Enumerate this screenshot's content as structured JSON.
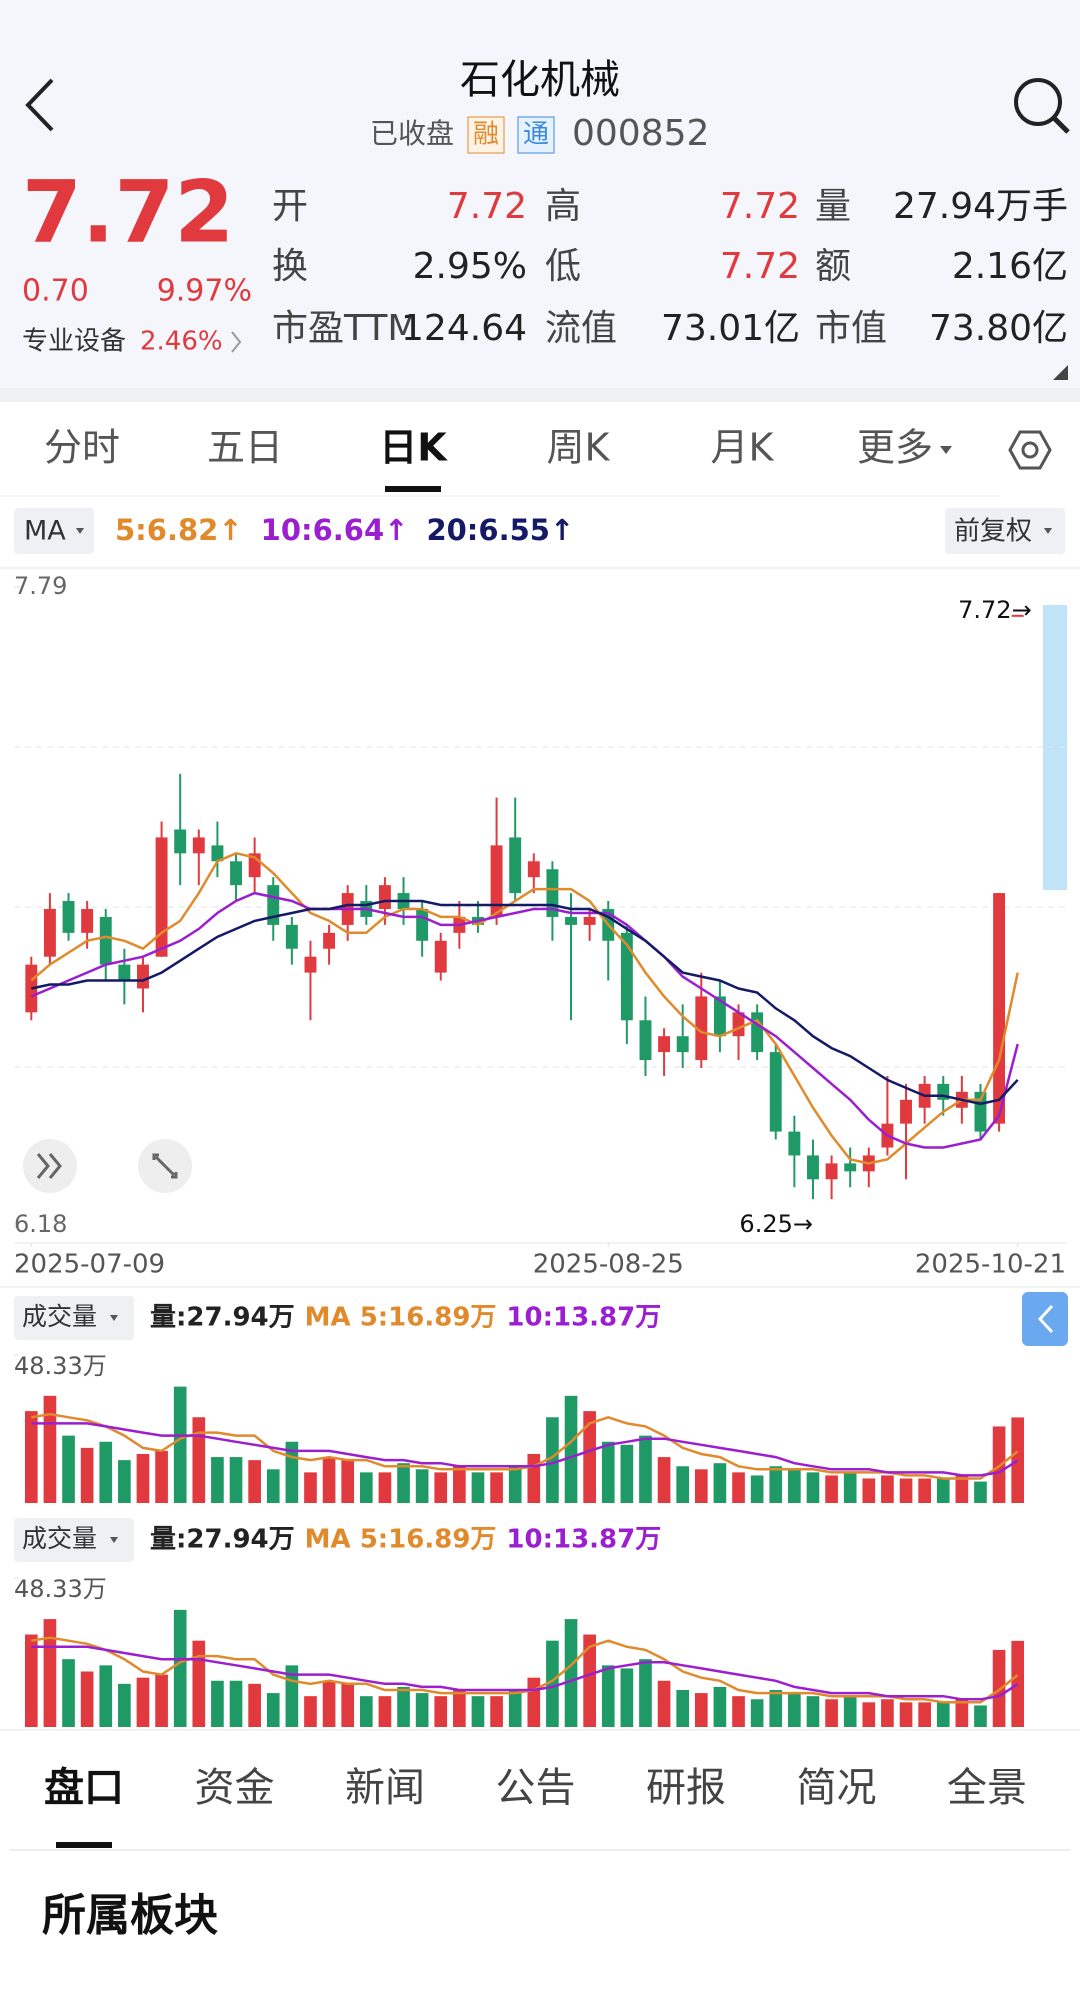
{
  "header": {
    "title": "石化机械",
    "status": "已收盘",
    "badges": [
      "融",
      "通"
    ],
    "code": "000852"
  },
  "quote": {
    "price": "7.72",
    "change": "0.70",
    "change_pct": "9.97%",
    "sector": "专业设备",
    "sector_pct": "2.46%",
    "stats": [
      [
        {
          "label": "开",
          "value": "7.72",
          "color": "#e0393e"
        },
        {
          "label": "高",
          "value": "7.72",
          "color": "#e0393e"
        },
        {
          "label": "量",
          "value": "27.94万手",
          "color": "#222"
        }
      ],
      [
        {
          "label": "换",
          "value": "2.95%",
          "color": "#222"
        },
        {
          "label": "低",
          "value": "7.72",
          "color": "#e0393e"
        },
        {
          "label": "额",
          "value": "2.16亿",
          "color": "#222"
        }
      ],
      [
        {
          "label": "市盈TTM",
          "value": "124.64",
          "color": "#222"
        },
        {
          "label": "流值",
          "value": "73.01亿",
          "color": "#222"
        },
        {
          "label": "市值",
          "value": "73.80亿",
          "color": "#222"
        }
      ]
    ]
  },
  "tabs": [
    "分时",
    "五日",
    "日K",
    "周K",
    "月K",
    "更多"
  ],
  "active_tab": 2,
  "chart_data": {
    "type": "candlestick",
    "selector": "MA",
    "adjust": "前复权",
    "ma_legend": [
      {
        "text": "5:6.82↑",
        "color": "#e08a2c"
      },
      {
        "text": "10:6.64↑",
        "color": "#9b1fd0"
      },
      {
        "text": "20:6.55↑",
        "color": "#141a66"
      }
    ],
    "up_color": "#e0393e",
    "down_color": "#1f9a66",
    "ylim": [
      6.18,
      7.79
    ],
    "yticks": [
      6.18,
      7.79
    ],
    "xticks": [
      {
        "value": 0,
        "label": "2025-07-09"
      },
      {
        "value": 31,
        "label": "2025-08-25"
      },
      {
        "value": 53,
        "label": "2025-10-21"
      }
    ],
    "annotations": [
      {
        "index": 53,
        "value": 7.72,
        "label": "7.72→"
      },
      {
        "index": 42,
        "value": 6.25,
        "label": "6.25→"
      }
    ],
    "candles": [
      [
        6.72,
        6.86,
        6.7,
        6.84
      ],
      [
        6.86,
        7.02,
        6.84,
        6.98
      ],
      [
        7.0,
        7.02,
        6.9,
        6.92
      ],
      [
        6.92,
        7.0,
        6.88,
        6.98
      ],
      [
        6.96,
        6.98,
        6.8,
        6.84
      ],
      [
        6.84,
        6.88,
        6.74,
        6.8
      ],
      [
        6.78,
        6.86,
        6.72,
        6.84
      ],
      [
        6.86,
        7.2,
        6.86,
        7.16
      ],
      [
        7.18,
        7.32,
        7.04,
        7.12
      ],
      [
        7.12,
        7.18,
        7.04,
        7.16
      ],
      [
        7.14,
        7.2,
        7.06,
        7.1
      ],
      [
        7.1,
        7.12,
        7.0,
        7.04
      ],
      [
        7.06,
        7.16,
        7.02,
        7.12
      ],
      [
        7.04,
        7.06,
        6.9,
        6.94
      ],
      [
        6.94,
        6.96,
        6.84,
        6.88
      ],
      [
        6.82,
        6.9,
        6.7,
        6.86
      ],
      [
        6.88,
        6.94,
        6.84,
        6.92
      ],
      [
        6.94,
        7.04,
        6.9,
        7.02
      ],
      [
        7.0,
        7.04,
        6.94,
        6.96
      ],
      [
        6.98,
        7.06,
        6.94,
        7.04
      ],
      [
        7.02,
        7.06,
        6.94,
        6.98
      ],
      [
        6.98,
        7.0,
        6.86,
        6.9
      ],
      [
        6.82,
        6.92,
        6.8,
        6.9
      ],
      [
        6.92,
        7.0,
        6.88,
        6.96
      ],
      [
        6.96,
        7.0,
        6.92,
        6.94
      ],
      [
        6.96,
        7.26,
        6.94,
        7.14
      ],
      [
        7.16,
        7.26,
        7.0,
        7.02
      ],
      [
        7.06,
        7.12,
        7.02,
        7.1
      ],
      [
        7.08,
        7.1,
        6.9,
        6.96
      ],
      [
        6.96,
        7.02,
        6.7,
        6.94
      ],
      [
        6.94,
        6.98,
        6.9,
        6.96
      ],
      [
        6.98,
        7.0,
        6.8,
        6.9
      ],
      [
        6.92,
        6.94,
        6.64,
        6.7
      ],
      [
        6.7,
        6.76,
        6.56,
        6.6
      ],
      [
        6.62,
        6.68,
        6.56,
        6.66
      ],
      [
        6.66,
        6.74,
        6.58,
        6.62
      ],
      [
        6.6,
        6.82,
        6.58,
        6.76
      ],
      [
        6.76,
        6.8,
        6.62,
        6.66
      ],
      [
        6.66,
        6.74,
        6.6,
        6.72
      ],
      [
        6.72,
        6.74,
        6.6,
        6.62
      ],
      [
        6.62,
        6.64,
        6.4,
        6.42
      ],
      [
        6.42,
        6.46,
        6.28,
        6.36
      ],
      [
        6.36,
        6.4,
        6.25,
        6.3
      ],
      [
        6.3,
        6.36,
        6.25,
        6.34
      ],
      [
        6.34,
        6.38,
        6.28,
        6.32
      ],
      [
        6.32,
        6.38,
        6.28,
        6.36
      ],
      [
        6.38,
        6.56,
        6.36,
        6.44
      ],
      [
        6.44,
        6.54,
        6.3,
        6.5
      ],
      [
        6.48,
        6.56,
        6.44,
        6.54
      ],
      [
        6.54,
        6.56,
        6.46,
        6.5
      ],
      [
        6.48,
        6.56,
        6.44,
        6.52
      ],
      [
        6.52,
        6.54,
        6.4,
        6.42
      ],
      [
        6.44,
        7.02,
        6.42,
        7.02
      ],
      [
        7.72,
        7.72,
        7.72,
        7.72
      ]
    ],
    "ma5": [
      6.8,
      6.84,
      6.87,
      6.9,
      6.91,
      6.9,
      6.88,
      6.92,
      6.95,
      7.02,
      7.1,
      7.12,
      7.11,
      7.07,
      7.02,
      6.97,
      6.95,
      6.92,
      6.92,
      6.96,
      6.98,
      6.98,
      6.96,
      6.96,
      6.94,
      6.97,
      7.0,
      7.03,
      7.03,
      7.03,
      7.0,
      6.94,
      6.89,
      6.82,
      6.76,
      6.71,
      6.67,
      6.66,
      6.68,
      6.7,
      6.64,
      6.56,
      6.48,
      6.41,
      6.35,
      6.34,
      6.35,
      6.39,
      6.43,
      6.47,
      6.5,
      6.5,
      6.6,
      6.82
    ],
    "ma10": [
      6.76,
      6.78,
      6.8,
      6.82,
      6.84,
      6.85,
      6.86,
      6.88,
      6.9,
      6.93,
      6.97,
      7.0,
      7.02,
      7.01,
      7.0,
      6.98,
      6.98,
      6.98,
      6.98,
      6.97,
      6.96,
      6.96,
      6.94,
      6.94,
      6.95,
      6.96,
      6.97,
      6.98,
      6.98,
      6.97,
      6.97,
      6.97,
      6.94,
      6.9,
      6.86,
      6.81,
      6.78,
      6.75,
      6.72,
      6.69,
      6.66,
      6.62,
      6.58,
      6.54,
      6.5,
      6.45,
      6.41,
      6.39,
      6.38,
      6.38,
      6.39,
      6.4,
      6.46,
      6.64
    ],
    "ma20": [
      6.78,
      6.79,
      6.79,
      6.8,
      6.8,
      6.8,
      6.8,
      6.82,
      6.85,
      6.88,
      6.91,
      6.93,
      6.95,
      6.96,
      6.97,
      6.98,
      6.98,
      6.99,
      6.99,
      7.0,
      7.0,
      7.0,
      6.99,
      6.99,
      6.99,
      6.99,
      6.99,
      6.99,
      6.99,
      6.98,
      6.98,
      6.96,
      6.93,
      6.9,
      6.86,
      6.82,
      6.81,
      6.8,
      6.78,
      6.77,
      6.73,
      6.7,
      6.66,
      6.63,
      6.61,
      6.58,
      6.55,
      6.53,
      6.51,
      6.51,
      6.5,
      6.49,
      6.5,
      6.55
    ]
  },
  "volume": {
    "type": "bar",
    "label": "成交量",
    "texts": [
      {
        "text": "量:27.94万",
        "color": "#222"
      },
      {
        "text": "MA 5:16.89万",
        "color": "#e08a2c"
      },
      {
        "text": "10:13.87万",
        "color": "#9b1fd0"
      }
    ],
    "ylim": [
      0,
      48.33
    ],
    "yticks": [
      {
        "value": 48.33,
        "label": "48.33万"
      }
    ],
    "values": [
      30,
      35,
      22,
      18,
      20,
      14,
      16,
      17,
      38,
      28,
      15,
      15,
      14,
      11,
      20,
      10,
      15,
      14,
      10,
      10,
      13,
      11,
      10,
      12,
      10,
      10,
      12,
      16,
      28,
      35,
      30,
      20,
      19,
      22,
      15,
      12,
      11,
      13,
      10,
      9,
      12,
      11,
      10,
      9,
      10,
      8,
      9,
      8,
      8,
      8,
      9,
      7,
      25,
      27.94
    ],
    "ma5": [
      28,
      29,
      28,
      27,
      25,
      22,
      18,
      17,
      21,
      23,
      23,
      22,
      22,
      17,
      15,
      14,
      15,
      14,
      14,
      12,
      12,
      12,
      11,
      11,
      11,
      11,
      11,
      12,
      15,
      20,
      26,
      28,
      26,
      25,
      22,
      18,
      16,
      15,
      12,
      11,
      11,
      11,
      11,
      10,
      10,
      10,
      10,
      9,
      9,
      8,
      8,
      8,
      12,
      16.89
    ],
    "ma10": [
      26,
      26,
      26,
      26,
      25,
      24,
      23,
      22,
      22,
      22,
      21,
      20,
      19,
      18,
      17,
      17,
      17,
      16,
      15,
      14,
      14,
      13,
      13,
      12,
      12,
      12,
      12,
      12,
      13,
      15,
      17,
      19,
      20,
      21,
      21,
      20,
      19,
      18,
      17,
      16,
      15,
      13,
      12,
      11,
      11,
      11,
      10,
      10,
      10,
      10,
      9,
      9,
      10,
      13.87
    ]
  },
  "bottom_tabs": [
    "盘口",
    "资金",
    "新闻",
    "公告",
    "研报",
    "简况",
    "全景"
  ],
  "active_bottom_tab": 0,
  "section_title": "所属板块"
}
